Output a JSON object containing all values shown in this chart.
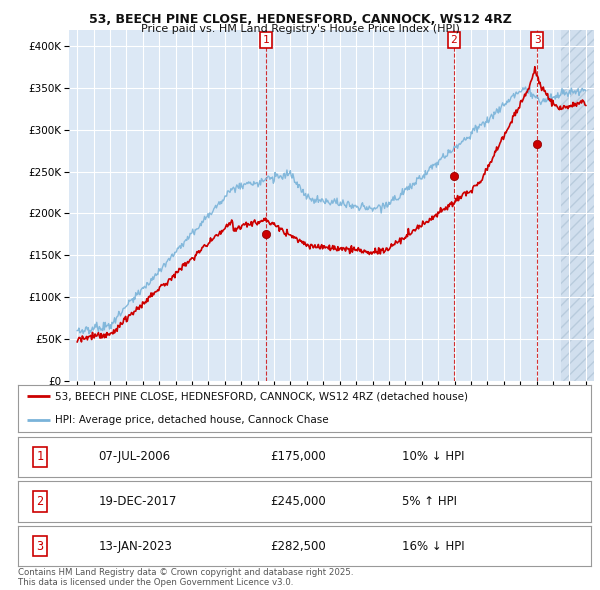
{
  "title_line1": "53, BEECH PINE CLOSE, HEDNESFORD, CANNOCK, WS12 4RZ",
  "title_line2": "Price paid vs. HM Land Registry's House Price Index (HPI)",
  "background_color": "#ffffff",
  "plot_bg_color": "#dce8f5",
  "grid_color": "#ffffff",
  "hpi_color": "#7ab3d9",
  "price_color": "#cc0000",
  "sale_points": [
    {
      "date_num": 2006.52,
      "price": 175000,
      "label": "1"
    },
    {
      "date_num": 2017.96,
      "price": 245000,
      "label": "2"
    },
    {
      "date_num": 2023.04,
      "price": 282500,
      "label": "3"
    }
  ],
  "sale_labels": [
    {
      "label": "1",
      "date": "07-JUL-2006",
      "price": "£175,000",
      "pct": "10%",
      "dir": "↓",
      "ref": "HPI"
    },
    {
      "label": "2",
      "date": "19-DEC-2017",
      "price": "£245,000",
      "pct": "5%",
      "dir": "↑",
      "ref": "HPI"
    },
    {
      "label": "3",
      "date": "13-JAN-2023",
      "price": "£282,500",
      "pct": "16%",
      "dir": "↓",
      "ref": "HPI"
    }
  ],
  "legend_entry1": "53, BEECH PINE CLOSE, HEDNESFORD, CANNOCK, WS12 4RZ (detached house)",
  "legend_entry2": "HPI: Average price, detached house, Cannock Chase",
  "footer": "Contains HM Land Registry data © Crown copyright and database right 2025.\nThis data is licensed under the Open Government Licence v3.0.",
  "ylim_min": 0,
  "ylim_max": 420000,
  "xmin": 1994.5,
  "xmax": 2026.5
}
